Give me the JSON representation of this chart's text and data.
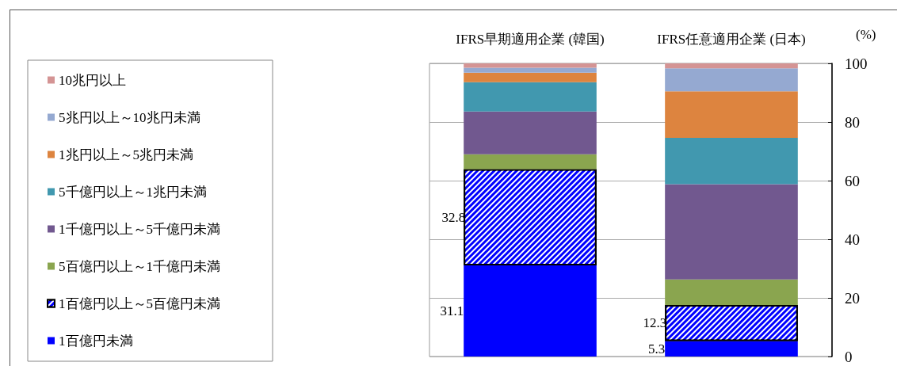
{
  "chart_data": {
    "type": "bar",
    "stacked": true,
    "categories": [
      "IFRS早期適用企業 (韓国)",
      "IFRS任意適用企業 (日本)"
    ],
    "ylabel": "(%)",
    "ylim": [
      0,
      100
    ],
    "yticks": [
      0,
      20,
      40,
      60,
      80,
      100
    ],
    "grid": "y",
    "legend": "left",
    "series": [
      {
        "name": "1百億円未満",
        "color": "#0000ff",
        "values": [
          31.1,
          5.3
        ],
        "value_labels": [
          "31.1",
          "5.3"
        ]
      },
      {
        "name": "1百億円以上～5百億円未満",
        "color": "#0000ff",
        "values": [
          32.8,
          12.3
        ],
        "value_labels": [
          "32.8",
          "12.3"
        ]
      },
      {
        "name": "5百億円以上～1千億円未満",
        "color": "#8aa54f",
        "values": [
          5.1,
          8.7
        ]
      },
      {
        "name": "1千億円以上～5千億円未満",
        "color": "#71588f",
        "values": [
          14.6,
          32.5
        ]
      },
      {
        "name": "5千億円以上～1兆円未満",
        "color": "#4198af",
        "values": [
          10.0,
          15.8
        ]
      },
      {
        "name": "1兆円以上～5兆円未満",
        "color": "#dd843f",
        "values": [
          3.2,
          15.9
        ]
      },
      {
        "name": "5兆円以上～10兆円未満",
        "color": "#95a9d1",
        "values": [
          1.7,
          7.8
        ]
      },
      {
        "name": "10兆円以上",
        "color": "#d49494",
        "values": [
          1.5,
          1.7
        ]
      }
    ]
  }
}
